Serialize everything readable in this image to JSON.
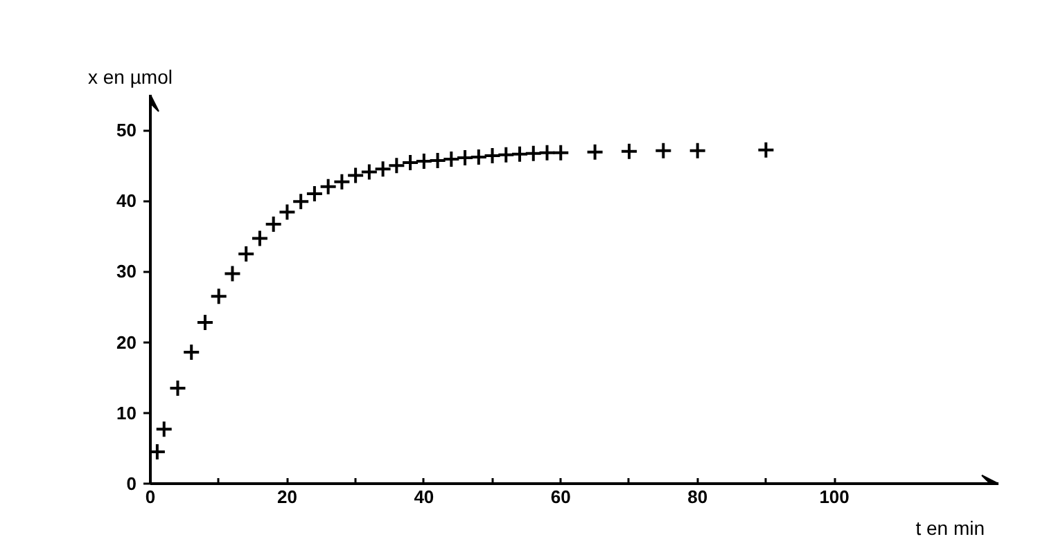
{
  "chart_data": {
    "type": "scatter",
    "xlabel": "t en min",
    "ylabel": "x en µmol",
    "x": [
      1,
      2,
      4,
      6,
      8,
      10,
      12,
      14,
      16,
      18,
      20,
      22,
      24,
      26,
      28,
      30,
      32,
      34,
      36,
      38,
      40,
      42,
      44,
      46,
      48,
      50,
      52,
      54,
      56,
      58,
      60,
      65,
      70,
      75,
      80,
      90
    ],
    "values": [
      4.5,
      7.7,
      13.5,
      18.6,
      22.8,
      26.5,
      29.7,
      32.5,
      34.7,
      36.7,
      38.4,
      39.9,
      41.0,
      42.0,
      42.7,
      43.6,
      44.1,
      44.5,
      45.0,
      45.4,
      45.6,
      45.7,
      45.9,
      46.1,
      46.2,
      46.4,
      46.5,
      46.6,
      46.7,
      46.8,
      46.8,
      46.9,
      47.0,
      47.1,
      47.1,
      47.2
    ],
    "color": "#000000",
    "marker": "cross",
    "grid": false,
    "xlim": [
      0,
      124
    ],
    "ylim": [
      0,
      55
    ],
    "xticks": [
      0,
      {
        "value": 10,
        "label": null
      },
      20,
      {
        "value": 30,
        "label": null
      },
      40,
      {
        "value": 50,
        "label": null
      },
      60,
      {
        "value": 70,
        "label": null
      },
      80,
      {
        "value": 90,
        "label": null
      },
      100
    ],
    "yticks": [
      0,
      10,
      20,
      30,
      40,
      50
    ]
  }
}
